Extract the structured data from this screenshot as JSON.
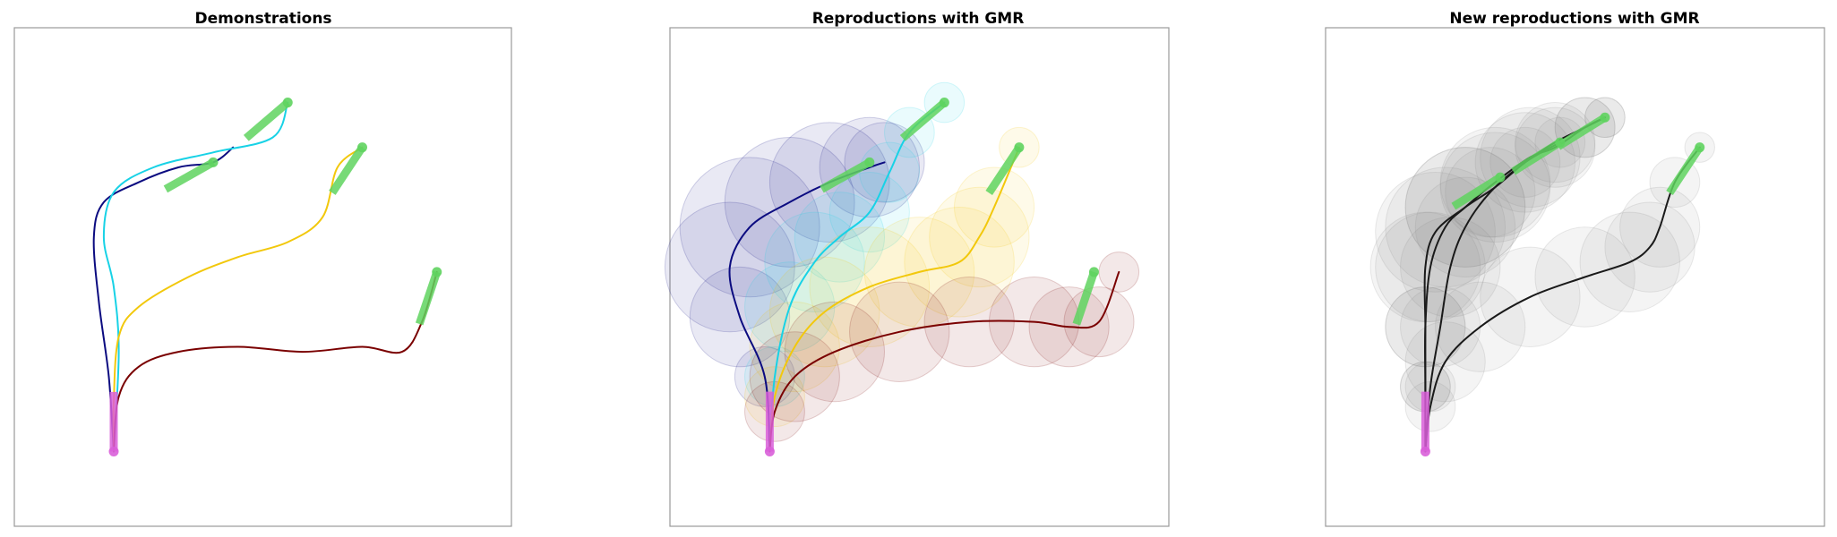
{
  "chart_data": [
    {
      "type": "line",
      "title": "Demonstrations",
      "xlabel": "",
      "ylabel": "",
      "xlim": [
        0,
        100
      ],
      "ylim": [
        0,
        100
      ],
      "grid": false,
      "axes_visible": false,
      "colors": {
        "start": "#d95fd9",
        "goal": "#5fd35f"
      },
      "start": {
        "x": 20,
        "y": 15,
        "dir_x": 0,
        "dir_y": 1
      },
      "series": [
        {
          "color": "#0b0b80",
          "points": [
            [
              20,
              15
            ],
            [
              19,
              30
            ],
            [
              17,
              45
            ],
            [
              16,
              58
            ],
            [
              18,
              65
            ],
            [
              25,
              69
            ],
            [
              33,
              72
            ],
            [
              40,
              73
            ],
            [
              44,
              76
            ]
          ],
          "goal": [
            40,
            73
          ],
          "goal_dir": [
            0.87,
            0.49
          ]
        },
        {
          "color": "#18d2e6",
          "points": [
            [
              20,
              15
            ],
            [
              21,
              35
            ],
            [
              20,
              48
            ],
            [
              18,
              58
            ],
            [
              20,
              67
            ],
            [
              28,
              72
            ],
            [
              40,
              75
            ],
            [
              52,
              78
            ],
            [
              55,
              85
            ]
          ],
          "goal": [
            55,
            85
          ],
          "goal_dir": [
            0.76,
            0.65
          ]
        },
        {
          "color": "#f2c80c",
          "points": [
            [
              20,
              15
            ],
            [
              20,
              25
            ],
            [
              21,
              38
            ],
            [
              25,
              44
            ],
            [
              35,
              50
            ],
            [
              45,
              54
            ],
            [
              55,
              57
            ],
            [
              62,
              62
            ],
            [
              65,
              72
            ],
            [
              70,
              76
            ]
          ],
          "goal": [
            70,
            76
          ],
          "goal_dir": [
            0.55,
            0.83
          ]
        },
        {
          "color": "#7a0000",
          "points": [
            [
              20,
              15
            ],
            [
              21,
              26
            ],
            [
              25,
              32
            ],
            [
              33,
              35
            ],
            [
              45,
              36
            ],
            [
              58,
              35
            ],
            [
              70,
              36
            ],
            [
              78,
              35
            ],
            [
              82,
              41
            ],
            [
              85,
              51
            ]
          ],
          "goal": [
            85,
            51
          ],
          "goal_dir": [
            0.32,
            0.95
          ]
        }
      ]
    },
    {
      "type": "line",
      "title": "Reproductions with GMR",
      "xlabel": "",
      "ylabel": "",
      "xlim": [
        0,
        100
      ],
      "ylim": [
        0,
        100
      ],
      "grid": false,
      "axes_visible": false,
      "colors": {
        "start": "#d95fd9",
        "goal": "#5fd35f"
      },
      "start": {
        "x": 20,
        "y": 15,
        "dir_x": 0,
        "dir_y": 1
      },
      "series": [
        {
          "color": "#0b0b80",
          "points": [
            [
              20,
              15
            ],
            [
              19,
              30
            ],
            [
              14,
              42
            ],
            [
              12,
              52
            ],
            [
              16,
              60
            ],
            [
              24,
              65
            ],
            [
              32,
              69
            ],
            [
              40,
              72
            ],
            [
              43,
              73
            ]
          ],
          "goal": [
            40,
            73
          ],
          "goal_dir": [
            0.87,
            0.49
          ],
          "band": [
            0,
            6,
            10,
            13,
            14,
            13,
            12,
            10,
            8
          ]
        },
        {
          "color": "#18d2e6",
          "points": [
            [
              20,
              15
            ],
            [
              21,
              30
            ],
            [
              24,
              44
            ],
            [
              29,
              53
            ],
            [
              34,
              58
            ],
            [
              40,
              63
            ],
            [
              44,
              71
            ],
            [
              48,
              79
            ],
            [
              55,
              85
            ]
          ],
          "goal": [
            55,
            85
          ],
          "goal_dir": [
            0.76,
            0.65
          ],
          "band": [
            0,
            6,
            9,
            10,
            9,
            8,
            6,
            5,
            4
          ]
        },
        {
          "color": "#f2c80c",
          "points": [
            [
              20,
              15
            ],
            [
              21,
              26
            ],
            [
              25,
              36
            ],
            [
              31,
              43
            ],
            [
              40,
              48
            ],
            [
              50,
              51
            ],
            [
              58,
              53
            ],
            [
              62,
              58
            ],
            [
              65,
              64
            ],
            [
              70,
              76
            ]
          ],
          "goal": [
            70,
            76
          ],
          "goal_dir": [
            0.55,
            0.83
          ],
          "band": [
            0,
            6,
            9,
            11,
            12,
            11,
            11,
            10,
            8,
            4
          ]
        },
        {
          "color": "#7a0000",
          "points": [
            [
              20,
              15
            ],
            [
              21,
              23
            ],
            [
              25,
              30
            ],
            [
              33,
              35
            ],
            [
              46,
              39
            ],
            [
              60,
              41
            ],
            [
              73,
              41
            ],
            [
              80,
              40
            ],
            [
              86,
              41
            ],
            [
              90,
              51
            ]
          ],
          "goal": [
            85,
            51
          ],
          "goal_dir": [
            0.32,
            0.95
          ],
          "band": [
            0,
            6,
            9,
            10,
            10,
            9,
            9,
            8,
            7,
            4
          ]
        }
      ]
    },
    {
      "type": "line",
      "title": "New reproductions with GMR",
      "xlabel": "",
      "ylabel": "",
      "xlim": [
        0,
        100
      ],
      "ylim": [
        0,
        100
      ],
      "grid": false,
      "axes_visible": false,
      "colors": {
        "start": "#d95fd9",
        "goal": "#5fd35f",
        "line": "#1a1a1a",
        "band": "#8a8a8a"
      },
      "start": {
        "x": 20,
        "y": 15,
        "dir_x": 0,
        "dir_y": 1
      },
      "series": [
        {
          "color": "#1a1a1a",
          "points": [
            [
              20,
              15
            ],
            [
              20,
              28
            ],
            [
              20,
              40
            ],
            [
              21,
              52
            ],
            [
              24,
              60
            ],
            [
              28,
              64
            ],
            [
              34,
              69
            ],
            [
              41,
              74
            ],
            [
              46,
              76
            ],
            [
              52,
              80
            ],
            [
              56,
              82
            ]
          ],
          "goal": [
            35,
            70
          ],
          "goal_dir": [
            0.85,
            0.53
          ],
          "band": [
            0,
            5,
            8,
            11,
            12,
            12,
            11,
            10,
            8,
            6,
            4
          ]
        },
        {
          "color": "#1a1a1a",
          "points": [
            [
              20,
              15
            ],
            [
              20,
              28
            ],
            [
              20,
              40
            ],
            [
              20,
              52
            ],
            [
              22,
              59
            ],
            [
              28,
              64
            ],
            [
              34,
              68
            ],
            [
              40,
              73
            ],
            [
              46,
              77
            ],
            [
              52,
              80
            ],
            [
              56,
              82
            ]
          ],
          "goal": [
            56,
            82
          ],
          "goal_dir": [
            0.85,
            0.53
          ],
          "band": [
            0,
            5,
            8,
            11,
            12,
            12,
            11,
            10,
            8,
            6,
            4
          ]
        },
        {
          "color": "#1a1a1a",
          "points": [
            [
              20,
              15
            ],
            [
              21,
              28
            ],
            [
              23,
              40
            ],
            [
              25,
              52
            ],
            [
              28,
              60
            ],
            [
              33,
              67
            ],
            [
              40,
              73
            ],
            [
              47,
              77
            ]
          ],
          "goal": [
            47,
            77
          ],
          "goal_dir": [
            0.85,
            0.53
          ],
          "band": [
            0,
            5,
            8,
            10,
            10,
            9,
            7,
            5
          ]
        },
        {
          "color": "#1a1a1a",
          "points": [
            [
              20,
              15
            ],
            [
              21,
              24
            ],
            [
              24,
              33
            ],
            [
              31,
              40
            ],
            [
              41,
              46
            ],
            [
              52,
              50
            ],
            [
              61,
              53
            ],
            [
              65,
              56
            ],
            [
              67,
              60
            ],
            [
              70,
              69
            ],
            [
              75,
              76
            ]
          ],
          "goal": [
            75,
            76
          ],
          "goal_dir": [
            0.55,
            0.83
          ],
          "band": [
            0,
            5,
            8,
            9,
            10,
            10,
            10,
            9,
            8,
            5,
            3
          ]
        }
      ]
    }
  ]
}
